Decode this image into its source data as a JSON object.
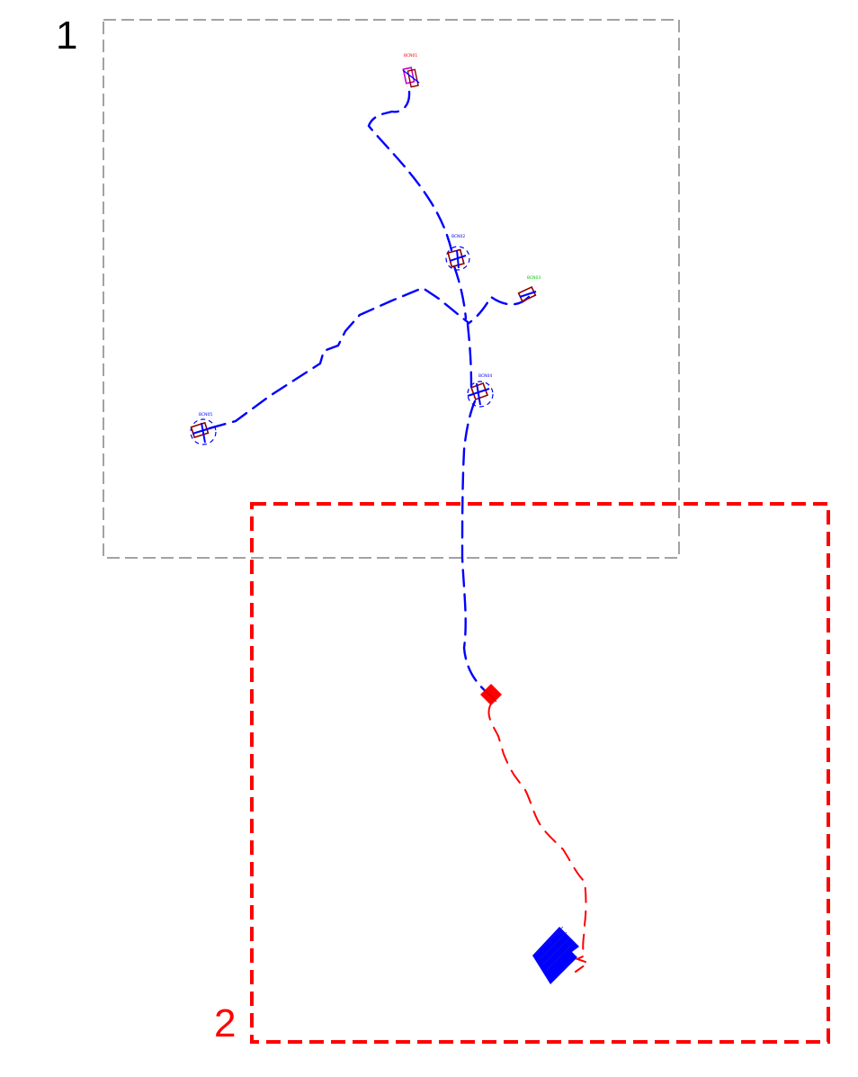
{
  "panels": [
    {
      "number": "1",
      "color": "#000000"
    },
    {
      "number": "2",
      "color": "#ff0000"
    }
  ],
  "colors": {
    "outline_1": "#444444",
    "outline_2": "#ff0000",
    "route_main": "#0000ff",
    "route_secondary": "#ff0000",
    "station_frame": "#8b0000",
    "station_magenta": "#cc00cc",
    "station_label_1": "#ff0000",
    "station_label_green": "#00cc00",
    "station_label_blue": "#0000ff",
    "terminal": "#0000ff"
  },
  "stations": [
    {
      "label": "BCN01",
      "label_color": "#ff0000"
    },
    {
      "label": "BCN02",
      "label_color": "#0000ff"
    },
    {
      "label": "BCN03",
      "label_color": "#00cc00"
    },
    {
      "label": "BCN04",
      "label_color": "#0000ff"
    },
    {
      "label": "BCN05",
      "label_color": "#0000ff"
    }
  ]
}
